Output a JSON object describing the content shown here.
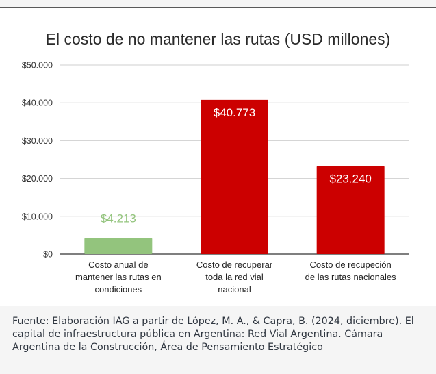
{
  "chart_data": {
    "type": "bar",
    "title": "El costo de no mantener las rutas (USD millones)",
    "categories": [
      [
        "Costo anual de",
        "mantener las rutas en",
        "condiciones"
      ],
      [
        "Costo de recuperar",
        "toda la red vial",
        "nacional"
      ],
      [
        "Costo de recupeción",
        "de las rutas nacionales"
      ]
    ],
    "values": [
      4213,
      40773,
      23240
    ],
    "data_labels": [
      "$4.213",
      "$40.773",
      "$23.240"
    ],
    "bar_colors": [
      "#93c47d",
      "#cc0000",
      "#cc0000"
    ],
    "label_colors": [
      "#93c47d",
      "#ffffff",
      "#ffffff"
    ],
    "yticks": [
      {
        "value": 0,
        "label": "$0"
      },
      {
        "value": 10000,
        "label": "$10.000"
      },
      {
        "value": 20000,
        "label": "$20.000"
      },
      {
        "value": 30000,
        "label": "$30.000"
      },
      {
        "value": 40000,
        "label": "$40.000"
      },
      {
        "value": 50000,
        "label": "$50.000"
      }
    ],
    "ylim": [
      0,
      50000
    ],
    "grid": true,
    "xlabel": "",
    "ylabel": ""
  },
  "source_text": "Fuente: Elaboración IAG a partir de López, M. A., & Capra, B. (2024, diciembre). El capital de infraestructura pública en Argentina: Red Vial Argentina. Cámara Argentina de la Construcción, Área de Pensamiento Estratégico"
}
